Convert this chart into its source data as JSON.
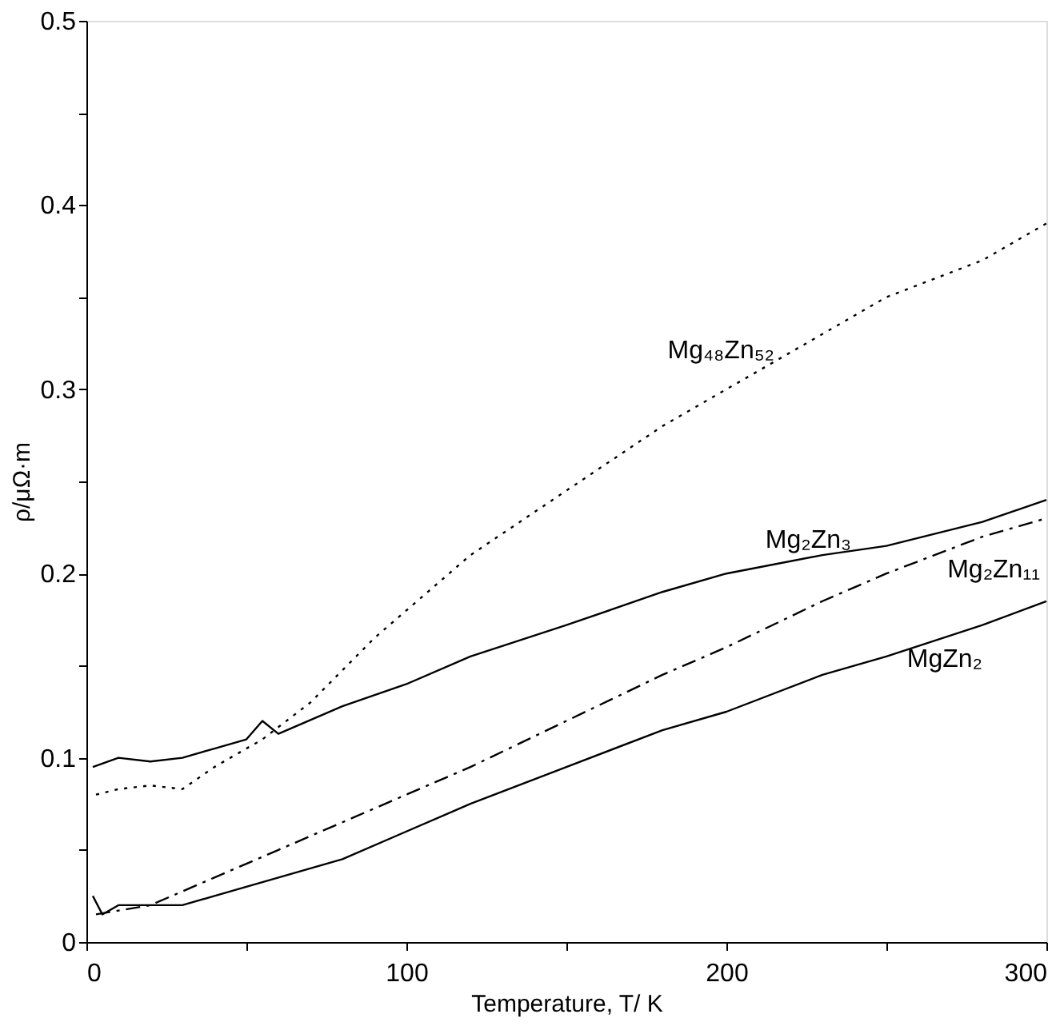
{
  "chart_data": {
    "type": "line",
    "xlabel": "Temperature, T/ K",
    "ylabel": "ρ/μΩ·m",
    "xlim": [
      0,
      300
    ],
    "ylim": [
      0,
      0.5
    ],
    "xticks": [
      0,
      {
        "value": 50,
        "label": null
      },
      100,
      {
        "value": 150,
        "label": null
      },
      200,
      {
        "value": 250,
        "label": null
      },
      300
    ],
    "yticks": [
      0,
      {
        "value": 0.05,
        "label": null
      },
      0.1,
      {
        "value": 0.15,
        "label": null
      },
      0.2,
      {
        "value": 0.25,
        "label": null
      },
      0.3,
      {
        "value": 0.35,
        "label": null
      },
      0.4,
      {
        "value": 0.45,
        "label": null
      },
      0.5
    ],
    "grid": false,
    "legend": false,
    "marker": "none",
    "series": [
      {
        "name": "Mg₄₈Zn₅₂",
        "color": "#000000",
        "line_style": "dotted",
        "x": [
          3,
          10,
          20,
          30,
          40,
          55,
          70,
          90,
          100,
          120,
          150,
          180,
          200,
          230,
          250,
          280,
          300
        ],
        "values": [
          0.08,
          0.083,
          0.085,
          0.083,
          0.095,
          0.11,
          0.13,
          0.165,
          0.18,
          0.21,
          0.245,
          0.28,
          0.3,
          0.33,
          0.35,
          0.37,
          0.39
        ]
      },
      {
        "name": "Mg₂Zn₃",
        "color": "#000000",
        "line_style": "solid",
        "x": [
          2,
          10,
          20,
          30,
          40,
          50,
          55,
          60,
          80,
          100,
          120,
          150,
          180,
          200,
          230,
          250,
          280,
          300
        ],
        "values": [
          0.095,
          0.1,
          0.098,
          0.1,
          0.105,
          0.11,
          0.12,
          0.113,
          0.128,
          0.14,
          0.155,
          0.172,
          0.19,
          0.2,
          0.21,
          0.215,
          0.228,
          0.24
        ]
      },
      {
        "name": "Mg₂Zn₁₁",
        "color": "#000000",
        "line_style": "dashed",
        "x": [
          3,
          20,
          40,
          60,
          80,
          100,
          120,
          150,
          180,
          200,
          230,
          250,
          280,
          300
        ],
        "values": [
          0.015,
          0.02,
          0.035,
          0.05,
          0.065,
          0.08,
          0.095,
          0.12,
          0.145,
          0.16,
          0.185,
          0.2,
          0.22,
          0.23
        ]
      },
      {
        "name": "MgZn₂",
        "color": "#000000",
        "line_style": "solid",
        "x": [
          2,
          5,
          10,
          20,
          30,
          40,
          60,
          80,
          100,
          120,
          150,
          180,
          200,
          230,
          250,
          280,
          300
        ],
        "values": [
          0.025,
          0.015,
          0.02,
          0.02,
          0.02,
          0.025,
          0.035,
          0.045,
          0.06,
          0.075,
          0.095,
          0.115,
          0.125,
          0.145,
          0.155,
          0.172,
          0.185
        ]
      }
    ]
  }
}
